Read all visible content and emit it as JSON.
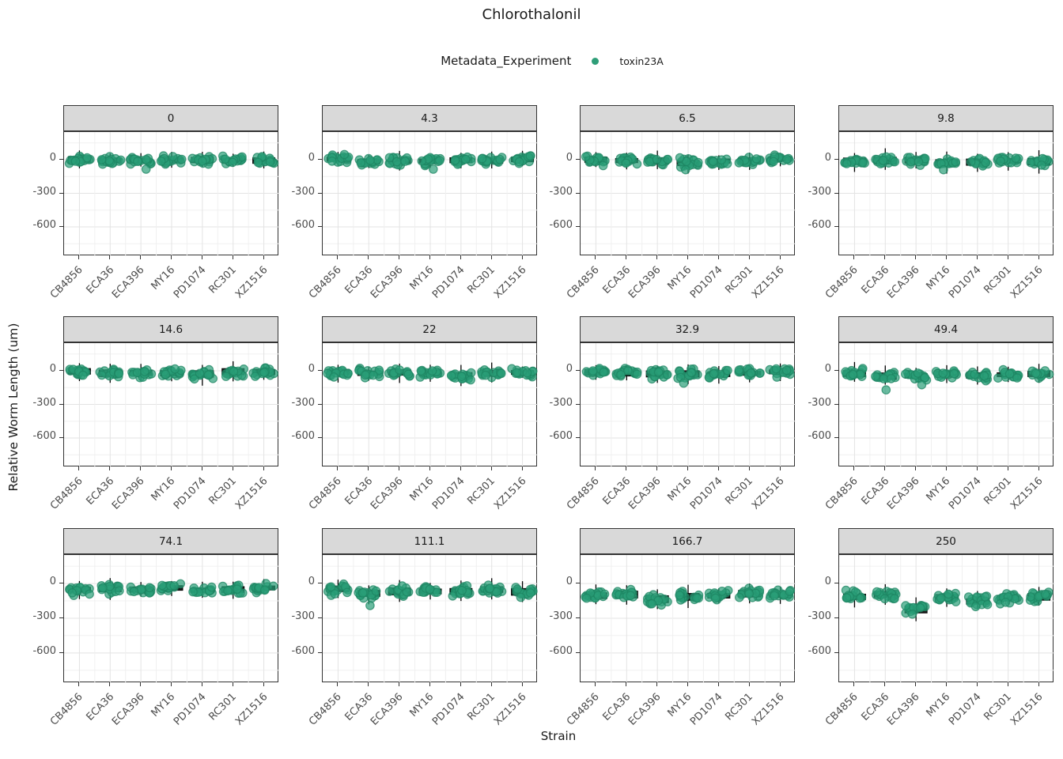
{
  "title": "Chlorothalonil",
  "legend": {
    "title": "Metadata_Experiment",
    "items": [
      {
        "label": "toxin23A",
        "color": "#2f9e78"
      }
    ]
  },
  "axes": {
    "y_title": "Relative Worm Length (um)",
    "x_title": "Strain"
  },
  "colors": {
    "point_fill": "#2a9e78",
    "point_stroke": "#1e8462",
    "box_fill": "#1f1f1f",
    "box_stroke": "#000000",
    "header_bg": "#d9d9d9",
    "panel_border": "#333333",
    "grid_major": "#e3e3e3",
    "grid_minor": "#f0f0f0",
    "tick_text": "#4d4d4d",
    "title_text": "#1a1a1a"
  },
  "chart_data": {
    "type": "scatter",
    "subtype": "jittered-points-with-boxplots-faceted",
    "facet_legend": "dose facets of Chlorothalonil",
    "strains": [
      "CB4856",
      "ECA36",
      "ECA396",
      "MY16",
      "PD1074",
      "RC301",
      "XZ1516"
    ],
    "y_ticks": [
      0,
      -300,
      -600
    ],
    "y_range": [
      -860,
      247
    ],
    "grid": true,
    "facets": [
      {
        "label": "0",
        "medians": [
          0,
          -5,
          -8,
          -5,
          -3,
          -5,
          -8
        ],
        "spread": 28,
        "outliers": [
          [
            2,
            -85
          ]
        ]
      },
      {
        "label": "4.3",
        "medians": [
          5,
          -18,
          -8,
          -12,
          -5,
          -8,
          2
        ],
        "spread": 28,
        "outliers": [
          [
            3,
            -85
          ]
        ]
      },
      {
        "label": "6.5",
        "medians": [
          0,
          -8,
          -10,
          -30,
          -12,
          -8,
          8
        ],
        "spread": 28,
        "outliers": [
          [
            3,
            -90
          ]
        ]
      },
      {
        "label": "9.8",
        "medians": [
          -12,
          -8,
          -5,
          -25,
          -22,
          -12,
          -18
        ],
        "spread": 28,
        "outliers": [
          [
            3,
            -90
          ]
        ]
      },
      {
        "label": "14.6",
        "medians": [
          -5,
          -22,
          -18,
          -22,
          -28,
          -8,
          -10
        ],
        "spread": 28,
        "outliers": []
      },
      {
        "label": "22",
        "medians": [
          -10,
          -22,
          -15,
          -22,
          -42,
          -22,
          -15
        ],
        "spread": 28,
        "outliers": []
      },
      {
        "label": "32.9",
        "medians": [
          -12,
          -28,
          -28,
          -28,
          -32,
          -22,
          -10
        ],
        "spread": 28,
        "outliers": [
          [
            3,
            -110
          ]
        ]
      },
      {
        "label": "49.4",
        "medians": [
          -25,
          -48,
          -45,
          -30,
          -42,
          -35,
          -28
        ],
        "spread": 30,
        "outliers": [
          [
            1,
            -170
          ],
          [
            2,
            -125
          ]
        ]
      },
      {
        "label": "74.1",
        "medians": [
          -52,
          -42,
          -52,
          -38,
          -58,
          -52,
          -38
        ],
        "spread": 28,
        "outliers": []
      },
      {
        "label": "111.1",
        "medians": [
          -45,
          -85,
          -68,
          -68,
          -68,
          -52,
          -72
        ],
        "spread": 30,
        "outliers": [
          [
            1,
            -190
          ]
        ]
      },
      {
        "label": "166.7",
        "medians": [
          -105,
          -95,
          -135,
          -115,
          -105,
          -88,
          -98
        ],
        "spread": 30,
        "outliers": [
          [
            2,
            -175
          ]
        ]
      },
      {
        "label": "250",
        "medians": [
          -115,
          -95,
          -225,
          -115,
          -155,
          -125,
          -115
        ],
        "spread": 34,
        "outliers": [
          [
            2,
            -265
          ],
          [
            4,
            -200
          ]
        ]
      }
    ]
  }
}
